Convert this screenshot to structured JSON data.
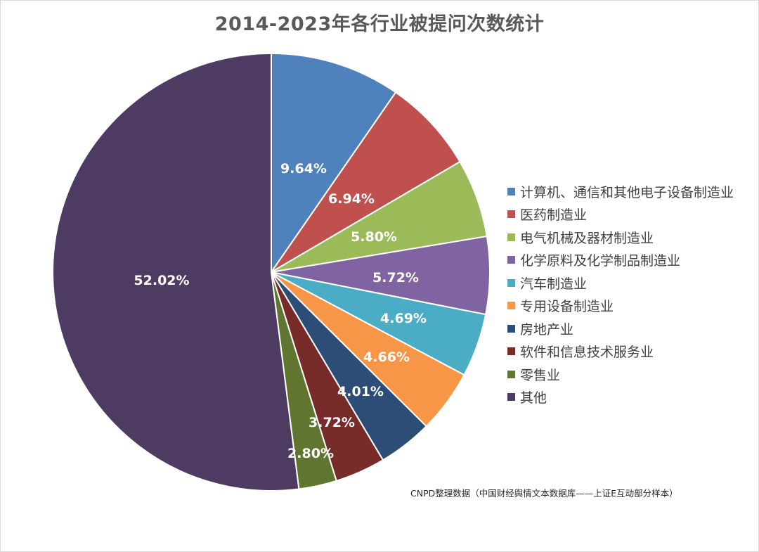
{
  "chart_data": {
    "type": "pie",
    "title": "2014-2023年各行业被提问次数统计",
    "categories": [
      "计算机、通信和其他电子设备制造业",
      "医药制造业",
      "电气机械及器材制造业",
      "化学原料及化学制品制造业",
      "汽车制造业",
      "专用设备制造业",
      "房地产业",
      "软件和信息技术服务业",
      "零售业",
      "其他"
    ],
    "values": [
      9.64,
      6.94,
      5.8,
      5.72,
      4.69,
      4.66,
      4.01,
      3.72,
      2.8,
      52.02
    ],
    "labels": [
      "9.64%",
      "6.94%",
      "5.80%",
      "5.72%",
      "4.69%",
      "4.66%",
      "4.01%",
      "3.72%",
      "2.80%",
      "52.02%"
    ],
    "colors": [
      "#4F81BD",
      "#C0504D",
      "#9BBB59",
      "#8064A2",
      "#4BACC6",
      "#F79646",
      "#2C4D75",
      "#772C2A",
      "#5F7530",
      "#4D3B62"
    ],
    "legend_position": "right",
    "start_angle": "12 o'clock",
    "direction": "clockwise",
    "note": "CNPD整理数据（中国财经舆情文本数据库——上证E互动部分样本）"
  }
}
